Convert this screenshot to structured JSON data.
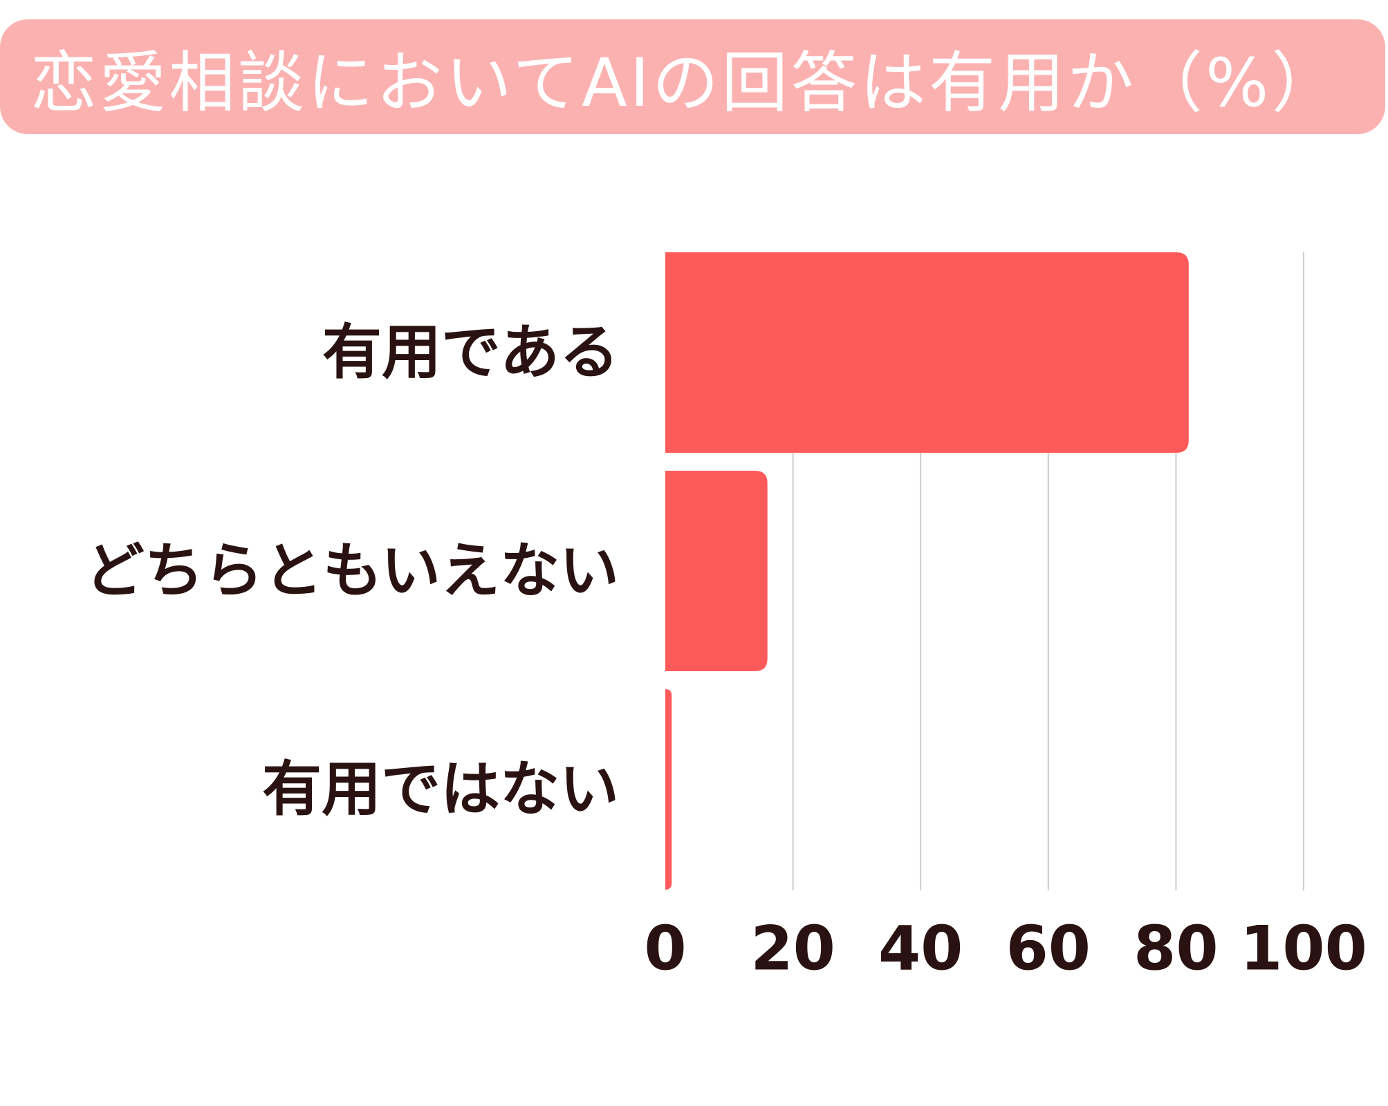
{
  "chart_data": {
    "type": "bar",
    "orientation": "horizontal",
    "title": "恋愛相談においてAIの回答は有用か（%）",
    "categories": [
      "有用である",
      "どちらともいえない",
      "有用ではない"
    ],
    "values": [
      82,
      16,
      1
    ],
    "xlim": [
      0,
      100
    ],
    "xticks": [
      "0",
      "20",
      "40",
      "60",
      "80",
      "100"
    ],
    "xlabel": "",
    "ylabel": "",
    "grid": true,
    "colors": {
      "bar": "#ff5a5a",
      "title_background": "#fcb1b1",
      "title_text": "#ffffff",
      "label_text": "#2b1212",
      "gridline": "#cccccc"
    }
  }
}
